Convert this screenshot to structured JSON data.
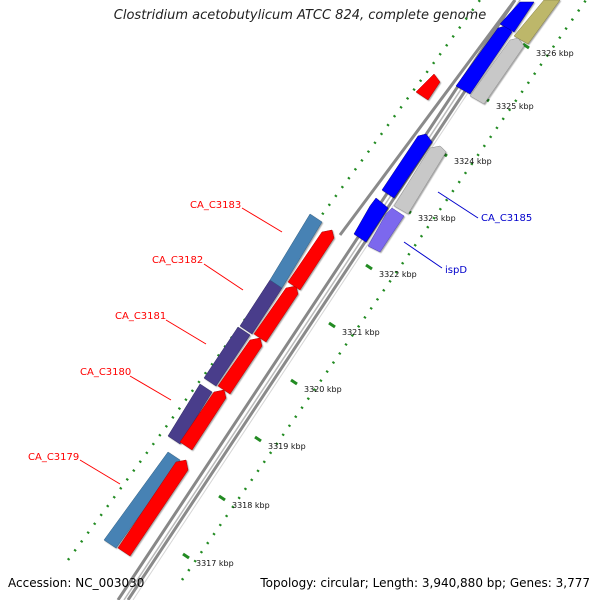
{
  "title": "Clostridium acetobutylicum ATCC 824, complete genome",
  "footer": {
    "accession": "Accession: NC_003030",
    "topology": "Topology: circular; Length: 3,940,880 bp; Genes: 3,777"
  },
  "colors": {
    "red_gene": "#ff0000",
    "blue_gene": "#0000ff",
    "steelblue_gene": "#4682b4",
    "darkslate_gene": "#483d8b",
    "lightslate_gene": "#7b68ee",
    "grey_gene": "#c8c8c8",
    "khaki_gene": "#bdb76b",
    "backbone": "#888888",
    "tick": "#228b22"
  },
  "ticks": [
    "3317 kbp",
    "3318 kbp",
    "3319 kbp",
    "3320 kbp",
    "3321 kbp",
    "3322 kbp",
    "3323 kbp",
    "3324 kbp",
    "3325 kbp",
    "3326 kbp"
  ],
  "labels": {
    "left": [
      "CA_C3183",
      "CA_C3182",
      "CA_C3181",
      "CA_C3180",
      "CA_C3179"
    ],
    "right": [
      "CA_C3185",
      "ispD"
    ]
  }
}
